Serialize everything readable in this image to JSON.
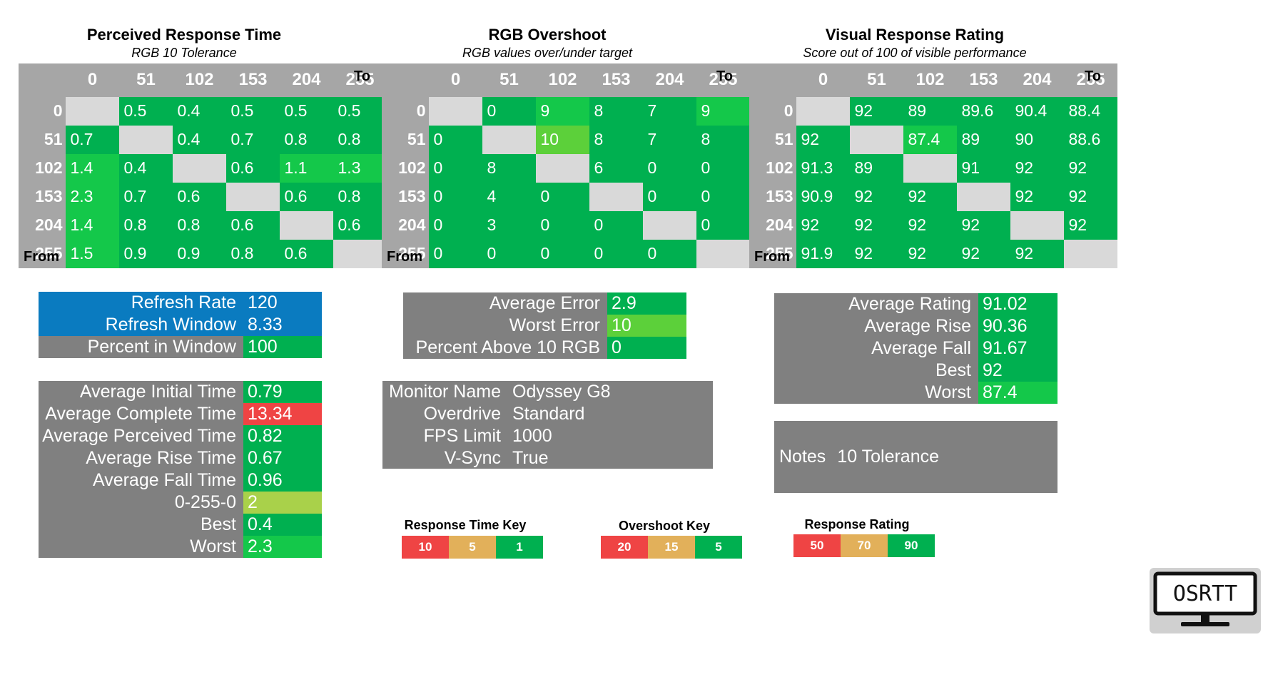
{
  "sections": {
    "response": {
      "title": "Perceived Response Time",
      "subtitle": "RGB 10 Tolerance"
    },
    "overshoot": {
      "title": "RGB Overshoot",
      "subtitle": "RGB values over/under target"
    },
    "rating": {
      "title": "Visual Response Rating",
      "subtitle": "Score out of 100 of visible performance"
    }
  },
  "axis": {
    "to": "To",
    "from": "From"
  },
  "levels": [
    "0",
    "51",
    "102",
    "153",
    "204",
    "255"
  ],
  "colors": {
    "green": "#00b050",
    "bright_green": "#14c84a",
    "light_green": "#5cd03a",
    "yellow_green": "#a9d14a",
    "red": "#ef4444",
    "gray": "#808080",
    "cell_gray": "#d9d9d9",
    "blue": "#0a7bc0",
    "tan": "#e2b05a"
  },
  "matrices": {
    "response": [
      [
        "",
        "0.5",
        "0.4",
        "0.5",
        "0.5",
        "0.5"
      ],
      [
        "0.7",
        "",
        "0.4",
        "0.7",
        "0.8",
        "0.8"
      ],
      [
        "1.4",
        "0.4",
        "",
        "0.6",
        "1.1",
        "1.3"
      ],
      [
        "2.3",
        "0.7",
        "0.6",
        "",
        "0.6",
        "0.8"
      ],
      [
        "1.4",
        "0.8",
        "0.8",
        "0.6",
        "",
        "0.6"
      ],
      [
        "1.5",
        "0.9",
        "0.9",
        "0.8",
        "0.6",
        ""
      ]
    ],
    "overshoot": [
      [
        "",
        "0",
        "9",
        "8",
        "7",
        "9"
      ],
      [
        "0",
        "",
        "10",
        "8",
        "7",
        "8"
      ],
      [
        "0",
        "8",
        "",
        "6",
        "0",
        "0"
      ],
      [
        "0",
        "4",
        "0",
        "",
        "0",
        "0"
      ],
      [
        "0",
        "3",
        "0",
        "0",
        "",
        "0"
      ],
      [
        "0",
        "0",
        "0",
        "0",
        "0",
        ""
      ]
    ],
    "rating": [
      [
        "",
        "92",
        "89",
        "89.6",
        "90.4",
        "88.4"
      ],
      [
        "92",
        "",
        "87.4",
        "89",
        "90",
        "88.6"
      ],
      [
        "91.3",
        "89",
        "",
        "91",
        "92",
        "92"
      ],
      [
        "90.9",
        "92",
        "92",
        "",
        "92",
        "92"
      ],
      [
        "92",
        "92",
        "92",
        "92",
        "",
        "92"
      ],
      [
        "91.9",
        "92",
        "92",
        "92",
        "92",
        ""
      ]
    ]
  },
  "refresh": [
    {
      "label": "Refresh Rate",
      "value": "120"
    },
    {
      "label": "Refresh Window",
      "value": "8.33"
    },
    {
      "label": "Percent in Window",
      "value": "100"
    }
  ],
  "times": [
    {
      "label": "Average Initial Time",
      "value": "0.79"
    },
    {
      "label": "Average Complete Time",
      "value": "13.34"
    },
    {
      "label": "Average Perceived Time",
      "value": "0.82"
    },
    {
      "label": "Average Rise Time",
      "value": "0.67"
    },
    {
      "label": "Average Fall Time",
      "value": "0.96"
    },
    {
      "label": "0-255-0",
      "value": "2"
    },
    {
      "label": "Best",
      "value": "0.4"
    },
    {
      "label": "Worst",
      "value": "2.3"
    }
  ],
  "errors": [
    {
      "label": "Average Error",
      "value": "2.9"
    },
    {
      "label": "Worst Error",
      "value": "10"
    },
    {
      "label": "Percent Above 10 RGB",
      "value": "0"
    }
  ],
  "monitor": [
    {
      "label": "Monitor Name",
      "value": "Odyssey G8"
    },
    {
      "label": "Overdrive",
      "value": "Standard"
    },
    {
      "label": "FPS Limit",
      "value": "1000"
    },
    {
      "label": "V-Sync",
      "value": "True"
    }
  ],
  "ratings": [
    {
      "label": "Average Rating",
      "value": "91.02"
    },
    {
      "label": "Average Rise",
      "value": "90.36"
    },
    {
      "label": "Average Fall",
      "value": "91.67"
    },
    {
      "label": "Best",
      "value": "92"
    },
    {
      "label": "Worst",
      "value": "87.4"
    }
  ],
  "notes": {
    "label": "Notes",
    "value": "10 Tolerance"
  },
  "keys": {
    "response": {
      "title": "Response Time Key",
      "values": [
        "10",
        "5",
        "1"
      ]
    },
    "overshoot": {
      "title": "Overshoot Key",
      "values": [
        "20",
        "15",
        "5"
      ]
    },
    "rating": {
      "title": "Response Rating Key",
      "values": [
        "50",
        "70",
        "90"
      ]
    }
  },
  "logo": {
    "text": "OSRTT",
    "icon": "monitor-icon"
  }
}
